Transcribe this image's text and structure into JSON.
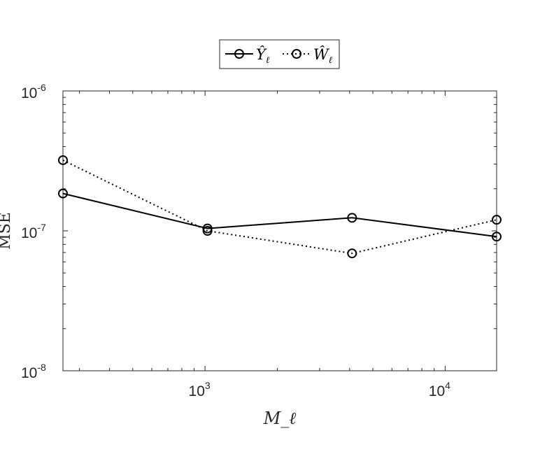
{
  "chart_data": {
    "type": "line",
    "xscale": "log",
    "yscale": "log",
    "xlim": [
      256,
      16384
    ],
    "ylim": [
      1e-08,
      1e-06
    ],
    "xlabel": "M_ℓ",
    "ylabel": "MSE",
    "x_ticks": [
      {
        "value": 1000,
        "base": "10",
        "exp": "3"
      },
      {
        "value": 10000,
        "base": "10",
        "exp": "4"
      }
    ],
    "y_ticks": [
      {
        "value": 1e-08,
        "base": "10",
        "exp": "-8"
      },
      {
        "value": 1e-07,
        "base": "10",
        "exp": "-7"
      },
      {
        "value": 1e-06,
        "base": "10",
        "exp": "-6"
      }
    ],
    "legend_position": "top-center",
    "series": [
      {
        "name": "Ŷ_ℓ",
        "name_main": "Ŷ",
        "name_sub": "ℓ",
        "line_style": "solid",
        "marker": "circle",
        "color": "#000000",
        "x": [
          256,
          1024,
          4096,
          16384
        ],
        "y": [
          1.85e-07,
          1.04e-07,
          1.24e-07,
          9.1e-08
        ]
      },
      {
        "name": "Ŵ_ℓ",
        "name_main": "Ŵ",
        "name_sub": "ℓ",
        "line_style": "dotted",
        "marker": "circle",
        "color": "#000000",
        "x": [
          256,
          1024,
          4096,
          16384
        ],
        "y": [
          3.2e-07,
          1e-07,
          6.9e-08,
          1.2e-07
        ]
      }
    ]
  }
}
